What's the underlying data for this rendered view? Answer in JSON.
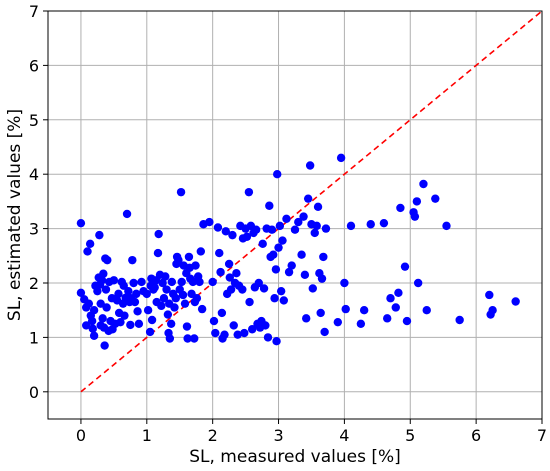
{
  "chart_data": {
    "type": "scatter",
    "title": "",
    "xlabel": "SL, measured values [%]",
    "ylabel": "SL, estimated values [%]",
    "xlim": [
      -0.5,
      7
    ],
    "ylim": [
      -0.5,
      7
    ],
    "xticks": [
      0,
      1,
      2,
      3,
      4,
      5,
      6,
      7
    ],
    "yticks": [
      0,
      1,
      2,
      3,
      4,
      5,
      6,
      7
    ],
    "grid": true,
    "point_color": "#0000ff",
    "reference_line": {
      "style": "dashed",
      "color": "#ff0000",
      "from": [
        0,
        0
      ],
      "to": [
        7,
        7
      ]
    },
    "points": [
      [
        0.0,
        3.1
      ],
      [
        0.0,
        1.82
      ],
      [
        0.05,
        1.7
      ],
      [
        0.08,
        1.55
      ],
      [
        0.08,
        1.22
      ],
      [
        0.1,
        2.58
      ],
      [
        0.12,
        1.62
      ],
      [
        0.14,
        2.72
      ],
      [
        0.15,
        1.4
      ],
      [
        0.17,
        1.3
      ],
      [
        0.18,
        1.16
      ],
      [
        0.2,
        1.5
      ],
      [
        0.2,
        1.03
      ],
      [
        0.22,
        1.95
      ],
      [
        0.25,
        1.85
      ],
      [
        0.27,
        2.1
      ],
      [
        0.28,
        2.88
      ],
      [
        0.29,
        1.97
      ],
      [
        0.3,
        1.62
      ],
      [
        0.3,
        1.22
      ],
      [
        0.32,
        2.05
      ],
      [
        0.33,
        1.35
      ],
      [
        0.34,
        2.17
      ],
      [
        0.35,
        1.18
      ],
      [
        0.36,
        0.85
      ],
      [
        0.37,
        2.45
      ],
      [
        0.38,
        1.88
      ],
      [
        0.39,
        1.55
      ],
      [
        0.4,
        2.42
      ],
      [
        0.42,
        1.12
      ],
      [
        0.43,
        2.02
      ],
      [
        0.45,
        1.3
      ],
      [
        0.47,
        1.72
      ],
      [
        0.48,
        1.15
      ],
      [
        0.5,
        2.05
      ],
      [
        0.52,
        1.25
      ],
      [
        0.55,
        1.68
      ],
      [
        0.57,
        1.8
      ],
      [
        0.58,
        1.45
      ],
      [
        0.6,
        1.28
      ],
      [
        0.62,
        2.02
      ],
      [
        0.64,
        1.62
      ],
      [
        0.65,
        1.95
      ],
      [
        0.66,
        1.4
      ],
      [
        0.68,
        1.73
      ],
      [
        0.7,
        3.27
      ],
      [
        0.72,
        1.85
      ],
      [
        0.74,
        1.65
      ],
      [
        0.75,
        1.23
      ],
      [
        0.76,
        1.72
      ],
      [
        0.78,
        2.42
      ],
      [
        0.8,
        2.0
      ],
      [
        0.82,
        1.65
      ],
      [
        0.84,
        1.8
      ],
      [
        0.86,
        1.48
      ],
      [
        0.88,
        1.25
      ],
      [
        0.92,
        2.02
      ],
      [
        0.95,
        1.85
      ],
      [
        1.0,
        1.8
      ],
      [
        1.02,
        1.5
      ],
      [
        1.05,
        1.1
      ],
      [
        1.06,
        1.95
      ],
      [
        1.07,
        2.08
      ],
      [
        1.08,
        1.32
      ],
      [
        1.1,
        1.88
      ],
      [
        1.12,
        1.92
      ],
      [
        1.14,
        2.05
      ],
      [
        1.15,
        1.65
      ],
      [
        1.17,
        2.55
      ],
      [
        1.18,
        2.9
      ],
      [
        1.2,
        2.15
      ],
      [
        1.22,
        1.58
      ],
      [
        1.24,
        2.0
      ],
      [
        1.26,
        1.72
      ],
      [
        1.28,
        2.12
      ],
      [
        1.3,
        1.88
      ],
      [
        1.32,
        1.42
      ],
      [
        1.33,
        1.08
      ],
      [
        1.34,
        1.62
      ],
      [
        1.35,
        0.98
      ],
      [
        1.37,
        1.25
      ],
      [
        1.38,
        2.02
      ],
      [
        1.4,
        1.8
      ],
      [
        1.42,
        1.55
      ],
      [
        1.44,
        1.72
      ],
      [
        1.45,
        2.35
      ],
      [
        1.46,
        2.48
      ],
      [
        1.48,
        2.42
      ],
      [
        1.5,
        1.88
      ],
      [
        1.52,
        3.67
      ],
      [
        1.53,
        2.02
      ],
      [
        1.55,
        1.78
      ],
      [
        1.56,
        2.32
      ],
      [
        1.58,
        1.62
      ],
      [
        1.6,
        2.18
      ],
      [
        1.61,
        1.2
      ],
      [
        1.62,
        0.98
      ],
      [
        1.64,
        2.48
      ],
      [
        1.65,
        2.28
      ],
      [
        1.66,
        2.08
      ],
      [
        1.68,
        1.8
      ],
      [
        1.7,
        2.02
      ],
      [
        1.72,
        0.98
      ],
      [
        1.73,
        1.65
      ],
      [
        1.74,
        2.32
      ],
      [
        1.76,
        1.72
      ],
      [
        1.78,
        2.12
      ],
      [
        1.8,
        2.02
      ],
      [
        1.82,
        2.58
      ],
      [
        1.84,
        1.52
      ],
      [
        1.86,
        3.08
      ],
      [
        1.95,
        3.12
      ],
      [
        2.0,
        2.02
      ],
      [
        2.02,
        1.3
      ],
      [
        2.04,
        1.08
      ],
      [
        2.08,
        3.02
      ],
      [
        2.1,
        2.55
      ],
      [
        2.12,
        2.2
      ],
      [
        2.14,
        1.45
      ],
      [
        2.15,
        0.98
      ],
      [
        2.18,
        1.05
      ],
      [
        2.2,
        2.95
      ],
      [
        2.22,
        1.8
      ],
      [
        2.25,
        2.35
      ],
      [
        2.26,
        2.1
      ],
      [
        2.28,
        1.88
      ],
      [
        2.3,
        2.88
      ],
      [
        2.32,
        1.22
      ],
      [
        2.34,
        2.0
      ],
      [
        2.36,
        2.18
      ],
      [
        2.38,
        1.05
      ],
      [
        2.4,
        1.95
      ],
      [
        2.42,
        3.05
      ],
      [
        2.45,
        1.88
      ],
      [
        2.46,
        2.82
      ],
      [
        2.48,
        1.08
      ],
      [
        2.5,
        3.0
      ],
      [
        2.52,
        2.85
      ],
      [
        2.55,
        3.67
      ],
      [
        2.56,
        1.65
      ],
      [
        2.58,
        3.05
      ],
      [
        2.6,
        1.15
      ],
      [
        2.62,
        2.92
      ],
      [
        2.64,
        1.92
      ],
      [
        2.66,
        2.98
      ],
      [
        2.68,
        1.25
      ],
      [
        2.7,
        2.0
      ],
      [
        2.72,
        1.18
      ],
      [
        2.74,
        1.3
      ],
      [
        2.76,
        2.72
      ],
      [
        2.78,
        1.9
      ],
      [
        2.8,
        1.22
      ],
      [
        2.82,
        3.0
      ],
      [
        2.84,
        1.0
      ],
      [
        2.86,
        3.42
      ],
      [
        2.88,
        2.48
      ],
      [
        2.9,
        2.98
      ],
      [
        2.92,
        2.52
      ],
      [
        2.94,
        1.72
      ],
      [
        2.96,
        2.25
      ],
      [
        2.97,
        0.93
      ],
      [
        2.98,
        4.0
      ],
      [
        3.0,
        2.65
      ],
      [
        3.02,
        3.05
      ],
      [
        3.04,
        1.85
      ],
      [
        3.06,
        2.78
      ],
      [
        3.08,
        1.68
      ],
      [
        3.12,
        3.18
      ],
      [
        3.16,
        2.2
      ],
      [
        3.2,
        2.32
      ],
      [
        3.25,
        2.98
      ],
      [
        3.3,
        3.12
      ],
      [
        3.35,
        2.52
      ],
      [
        3.38,
        3.22
      ],
      [
        3.4,
        2.15
      ],
      [
        3.42,
        1.35
      ],
      [
        3.45,
        3.55
      ],
      [
        3.48,
        4.16
      ],
      [
        3.5,
        3.08
      ],
      [
        3.52,
        1.9
      ],
      [
        3.55,
        2.92
      ],
      [
        3.58,
        3.05
      ],
      [
        3.6,
        3.4
      ],
      [
        3.62,
        2.18
      ],
      [
        3.64,
        1.45
      ],
      [
        3.66,
        2.08
      ],
      [
        3.68,
        2.48
      ],
      [
        3.7,
        1.1
      ],
      [
        3.72,
        3.0
      ],
      [
        3.9,
        1.28
      ],
      [
        3.95,
        4.3
      ],
      [
        4.0,
        2.0
      ],
      [
        4.02,
        1.52
      ],
      [
        4.1,
        3.05
      ],
      [
        4.25,
        1.25
      ],
      [
        4.3,
        1.5
      ],
      [
        4.4,
        3.08
      ],
      [
        4.6,
        3.1
      ],
      [
        4.65,
        1.35
      ],
      [
        4.7,
        1.72
      ],
      [
        4.78,
        1.55
      ],
      [
        4.82,
        1.82
      ],
      [
        4.85,
        3.38
      ],
      [
        4.92,
        2.3
      ],
      [
        4.95,
        1.3
      ],
      [
        5.05,
        3.3
      ],
      [
        5.07,
        3.22
      ],
      [
        5.1,
        3.5
      ],
      [
        5.12,
        2.0
      ],
      [
        5.2,
        3.82
      ],
      [
        5.25,
        1.5
      ],
      [
        5.38,
        3.55
      ],
      [
        5.55,
        3.05
      ],
      [
        5.75,
        1.32
      ],
      [
        6.2,
        1.78
      ],
      [
        6.22,
        1.42
      ],
      [
        6.25,
        1.5
      ],
      [
        6.6,
        1.66
      ]
    ]
  }
}
